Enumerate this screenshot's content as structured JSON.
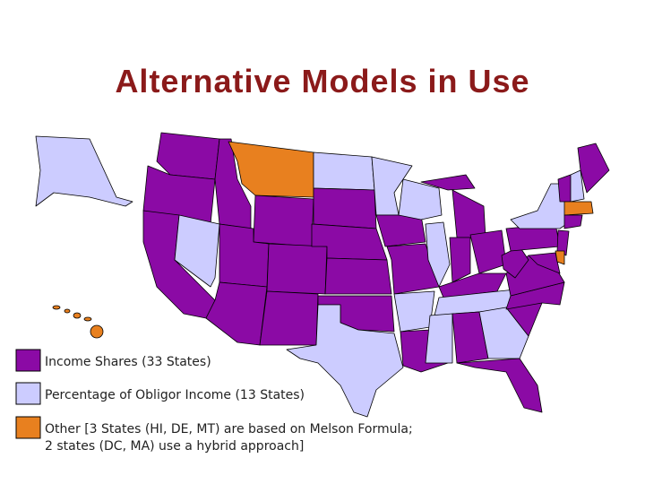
{
  "title": "Alternative Models in Use",
  "legend": [
    {
      "label": [
        "Income Shares (33 States)"
      ],
      "color": "#8b0aa5"
    },
    {
      "label": [
        "Percentage of Obligor Income (13 States)"
      ],
      "color": "#ccccff"
    },
    {
      "label": [
        "Other  [3 States (HI, DE, MT)  are based on Melson Formula;",
        "2 states (DC, MA) use a hybrid approach]"
      ],
      "color": "#e8801f"
    }
  ]
}
